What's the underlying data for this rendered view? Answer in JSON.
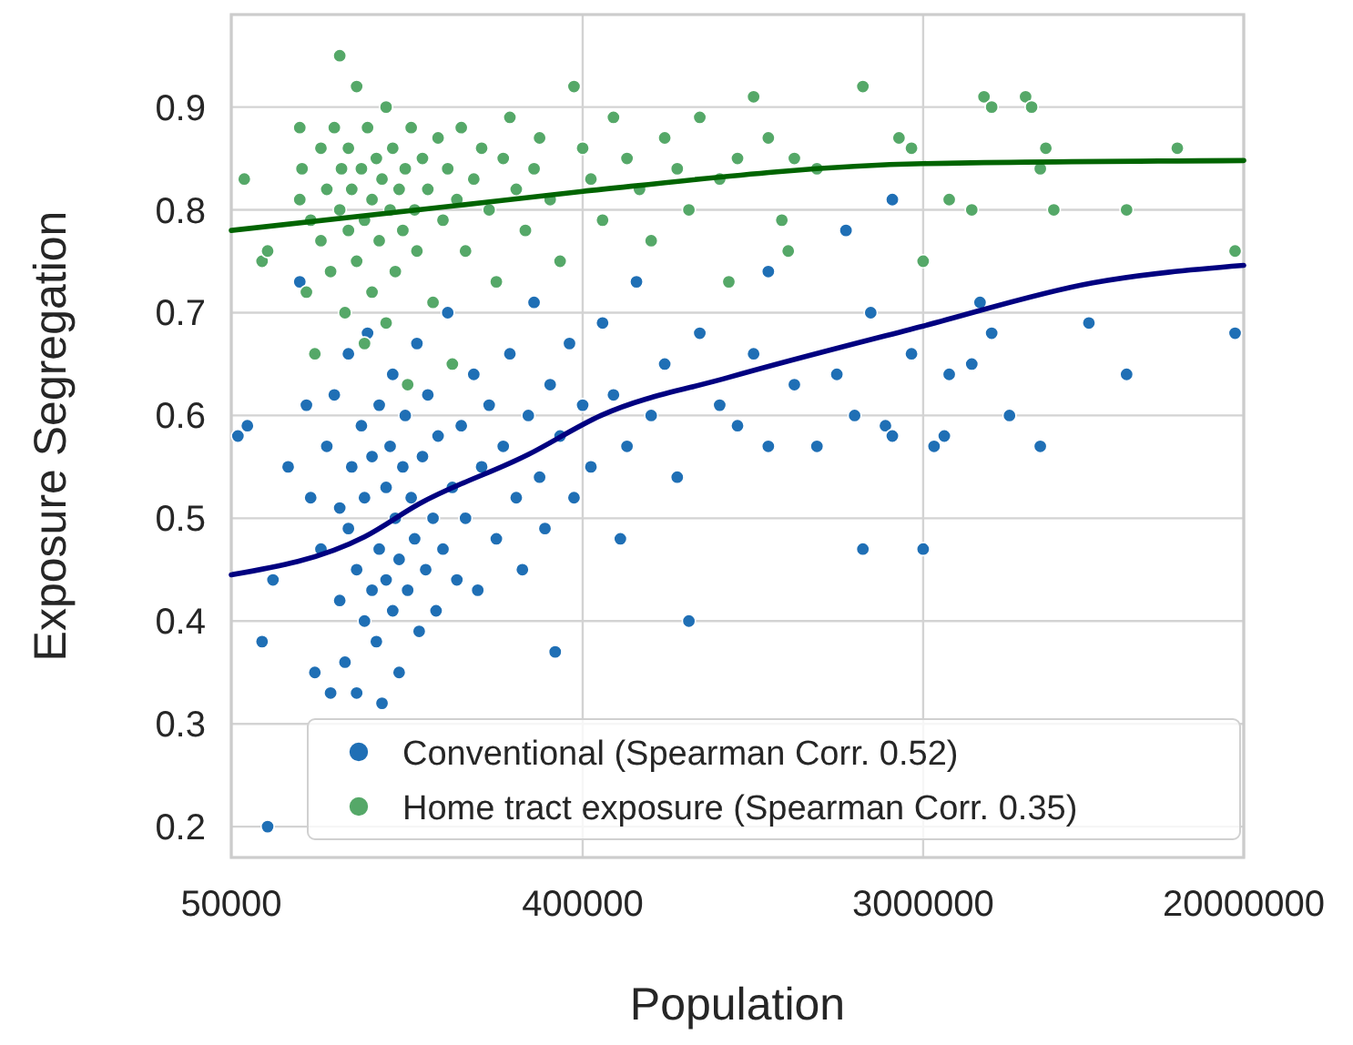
{
  "chart_data": {
    "type": "scatter",
    "xlabel": "Population",
    "ylabel": "Exposure Segregation",
    "log": "x",
    "xlim": [
      50000,
      20000000
    ],
    "xticks": [
      50000,
      400000,
      3000000,
      20000000
    ],
    "ylim": [
      0.17,
      0.99
    ],
    "yticks": [
      0.2,
      0.3,
      0.4,
      0.5,
      0.6,
      0.7,
      0.8,
      0.9
    ],
    "grid": true,
    "legend": "lower right",
    "marker": "circle",
    "series": [
      {
        "name": "Conventional (Spearman Corr. 0.52)",
        "color": "#1f6fb5",
        "x": [
          52000,
          55000,
          60000,
          62000,
          64000,
          70000,
          75000,
          78000,
          80000,
          82000,
          85000,
          88000,
          90000,
          92000,
          95000,
          95000,
          98000,
          100000,
          100000,
          102000,
          105000,
          105000,
          108000,
          110000,
          110000,
          112000,
          115000,
          115000,
          118000,
          120000,
          120000,
          122000,
          125000,
          125000,
          128000,
          130000,
          130000,
          132000,
          135000,
          135000,
          138000,
          140000,
          142000,
          145000,
          148000,
          150000,
          152000,
          155000,
          158000,
          160000,
          165000,
          168000,
          170000,
          175000,
          180000,
          185000,
          190000,
          195000,
          200000,
          210000,
          215000,
          220000,
          230000,
          240000,
          250000,
          260000,
          270000,
          280000,
          290000,
          300000,
          310000,
          320000,
          330000,
          340000,
          350000,
          370000,
          380000,
          400000,
          420000,
          450000,
          480000,
          500000,
          520000,
          550000,
          600000,
          650000,
          700000,
          750000,
          800000,
          900000,
          1000000,
          1100000,
          1200000,
          1200000,
          1400000,
          1600000,
          1800000,
          1900000,
          2000000,
          2100000,
          2200000,
          2400000,
          2500000,
          2500000,
          2800000,
          3000000,
          3200000,
          3400000,
          3500000,
          4000000,
          4200000,
          4500000,
          5000000,
          6000000,
          8000000,
          10000000,
          19000000
        ],
        "values": [
          0.58,
          0.59,
          0.38,
          0.2,
          0.44,
          0.55,
          0.73,
          0.61,
          0.52,
          0.35,
          0.47,
          0.57,
          0.33,
          0.62,
          0.42,
          0.51,
          0.36,
          0.66,
          0.49,
          0.55,
          0.33,
          0.45,
          0.59,
          0.4,
          0.52,
          0.68,
          0.43,
          0.56,
          0.38,
          0.47,
          0.61,
          0.32,
          0.53,
          0.44,
          0.57,
          0.41,
          0.64,
          0.5,
          0.46,
          0.35,
          0.55,
          0.6,
          0.43,
          0.52,
          0.48,
          0.67,
          0.39,
          0.56,
          0.45,
          0.62,
          0.5,
          0.41,
          0.58,
          0.47,
          0.7,
          0.53,
          0.44,
          0.59,
          0.5,
          0.64,
          0.43,
          0.55,
          0.61,
          0.48,
          0.57,
          0.66,
          0.52,
          0.45,
          0.6,
          0.71,
          0.54,
          0.49,
          0.63,
          0.37,
          0.58,
          0.67,
          0.52,
          0.61,
          0.55,
          0.69,
          0.62,
          0.48,
          0.57,
          0.73,
          0.6,
          0.65,
          0.54,
          0.4,
          0.68,
          0.61,
          0.59,
          0.66,
          0.74,
          0.57,
          0.63,
          0.57,
          0.64,
          0.78,
          0.6,
          0.47,
          0.7,
          0.59,
          0.58,
          0.81,
          0.66,
          0.47,
          0.57,
          0.58,
          0.64,
          0.65,
          0.71,
          0.68,
          0.6,
          0.57,
          0.69,
          0.64,
          0.68
        ]
      },
      {
        "name": "Home tract exposure (Spearman Corr. 0.35)",
        "color": "#55a868",
        "x": [
          54000,
          60000,
          62000,
          75000,
          75000,
          76000,
          78000,
          80000,
          82000,
          85000,
          85000,
          88000,
          90000,
          92000,
          95000,
          95000,
          96000,
          98000,
          100000,
          100000,
          102000,
          105000,
          105000,
          108000,
          110000,
          110000,
          112000,
          115000,
          115000,
          118000,
          120000,
          122000,
          125000,
          125000,
          128000,
          130000,
          132000,
          135000,
          138000,
          140000,
          142000,
          145000,
          148000,
          150000,
          155000,
          160000,
          165000,
          170000,
          175000,
          180000,
          185000,
          190000,
          195000,
          200000,
          210000,
          220000,
          230000,
          240000,
          250000,
          260000,
          270000,
          285000,
          300000,
          310000,
          330000,
          350000,
          380000,
          400000,
          420000,
          450000,
          480000,
          520000,
          560000,
          600000,
          650000,
          700000,
          750000,
          800000,
          900000,
          950000,
          1000000,
          1100000,
          1200000,
          1300000,
          1350000,
          1400000,
          1600000,
          2100000,
          2600000,
          2800000,
          3000000,
          3500000,
          4000000,
          4300000,
          4500000,
          5500000,
          5700000,
          6000000,
          6200000,
          6500000,
          10000000,
          13500000,
          19000000
        ],
        "values": [
          0.83,
          0.75,
          0.76,
          0.88,
          0.81,
          0.84,
          0.72,
          0.79,
          0.66,
          0.86,
          0.77,
          0.82,
          0.74,
          0.88,
          0.95,
          0.8,
          0.84,
          0.7,
          0.78,
          0.86,
          0.82,
          0.92,
          0.75,
          0.84,
          0.79,
          0.67,
          0.88,
          0.81,
          0.72,
          0.85,
          0.77,
          0.83,
          0.9,
          0.69,
          0.8,
          0.86,
          0.74,
          0.82,
          0.78,
          0.84,
          0.63,
          0.88,
          0.8,
          0.76,
          0.85,
          0.82,
          0.71,
          0.87,
          0.79,
          0.84,
          0.65,
          0.81,
          0.88,
          0.76,
          0.83,
          0.86,
          0.8,
          0.73,
          0.85,
          0.89,
          0.82,
          0.78,
          0.84,
          0.87,
          0.81,
          0.75,
          0.92,
          0.86,
          0.83,
          0.79,
          0.89,
          0.85,
          0.82,
          0.77,
          0.87,
          0.84,
          0.8,
          0.89,
          0.83,
          0.73,
          0.85,
          0.91,
          0.87,
          0.79,
          0.76,
          0.85,
          0.84,
          0.92,
          0.87,
          0.86,
          0.75,
          0.81,
          0.8,
          0.91,
          0.9,
          0.91,
          0.9,
          0.84,
          0.86,
          0.8,
          0.8,
          0.86,
          0.76
        ]
      },
      {
        "type": "line",
        "marker": "none",
        "color": "#006400",
        "x": [
          50000,
          188000,
          400000,
          3000000,
          20000000
        ],
        "values": [
          0.78,
          0.804,
          0.818,
          0.845,
          0.848
        ]
      },
      {
        "type": "line",
        "marker": "none",
        "color": "#000080",
        "x": [
          50000,
          110000,
          152000,
          290000,
          446000,
          948000,
          3000000,
          8180000,
          20000000
        ],
        "values": [
          0.445,
          0.482,
          0.514,
          0.562,
          0.6,
          0.637,
          0.687,
          0.729,
          0.746
        ]
      }
    ]
  }
}
